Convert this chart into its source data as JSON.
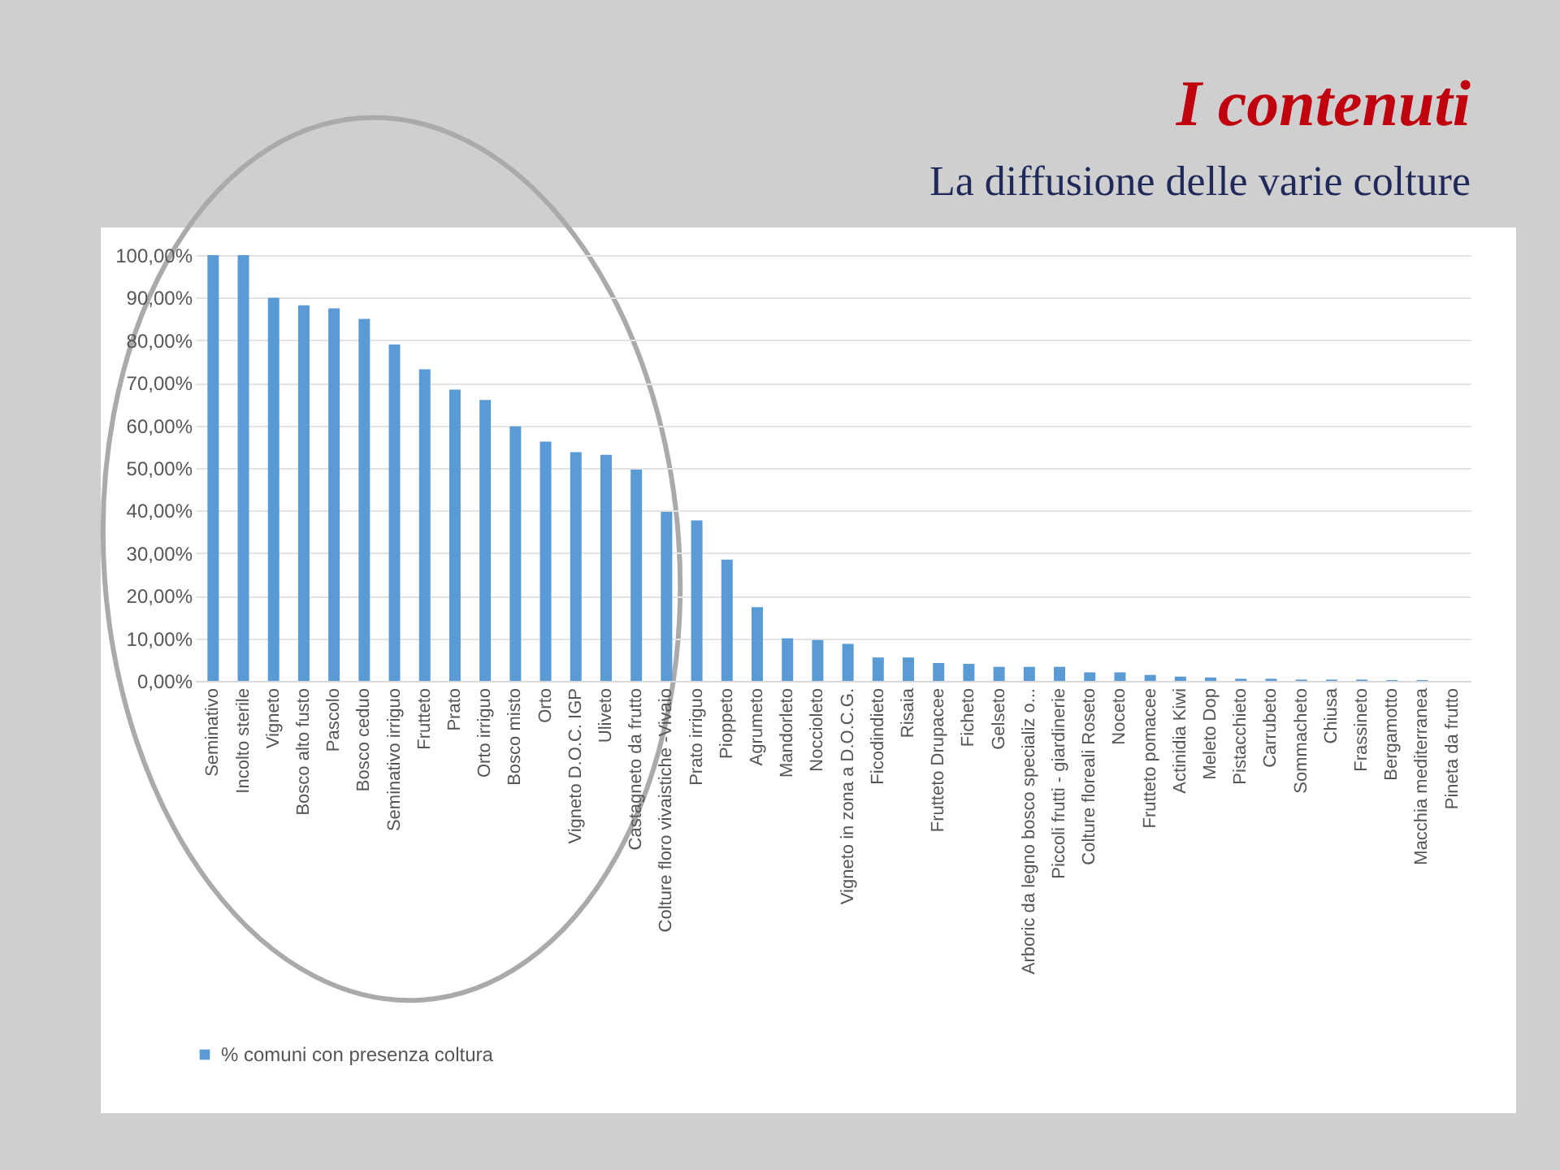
{
  "chart_data": {
    "type": "bar",
    "title": "I      contenuti",
    "subtitle": "La diffusione delle varie colture",
    "categories": [
      "Seminativo",
      "Incolto sterile",
      "Vigneto",
      "Bosco alto fusto",
      "Pascolo",
      "Bosco ceduo",
      "Seminativo irriguo",
      "Frutteto",
      "Prato",
      "Orto irriguo",
      "Bosco misto",
      "Orto",
      "Vigneto D.O.C. IGP",
      "Uliveto",
      "Castagneto da frutto",
      "Colture floro vivaistiche -Vivaio",
      "Prato irriguo",
      "Pioppeto",
      "Agrumeto",
      "Mandorleto",
      "Noccioleto",
      "Vigneto in zona a D.O.C.G.",
      "Ficodindieto",
      "Risaia",
      "Frutteto Drupacee",
      "Ficheto",
      "Gelseto",
      "Arboric da legno bosco  specializ o...",
      "Piccoli frutti - giardinerie",
      "Colture floreali Roseto",
      "Noceto",
      "Frutteto pomacee",
      "Actinidia Kiwi",
      "Meleto Dop",
      "Pistacchieto",
      "Carrubeto",
      "Sommacheto",
      "Chiusa",
      "Frassineto",
      "Bergamotto",
      "Macchia mediterranea",
      "Pineta da frutto"
    ],
    "series": [
      {
        "name": "% comuni con presenza coltura",
        "color": "#5b9bd5",
        "values": [
          100,
          100,
          90,
          88.2,
          87.5,
          85,
          79,
          73.2,
          68.4,
          66,
          59.8,
          56.2,
          53.7,
          53.1,
          49.6,
          39.7,
          37.7,
          28.5,
          17.3,
          10,
          9.6,
          8.7,
          5.5,
          5.5,
          4.2,
          4,
          3.3,
          3.3,
          3.3,
          2,
          2,
          1.4,
          1,
          0.8,
          0.5,
          0.5,
          0.3,
          0.3,
          0.3,
          0.2,
          0.2,
          0
        ]
      }
    ],
    "ylim": [
      0,
      100
    ],
    "yticks": [
      {
        "value": 0,
        "label": "0,00%"
      },
      {
        "value": 10,
        "label": "10,00%"
      },
      {
        "value": 20,
        "label": "20,00%"
      },
      {
        "value": 30,
        "label": "30,00%"
      },
      {
        "value": 40,
        "label": "40,00%"
      },
      {
        "value": 50,
        "label": "50,00%"
      },
      {
        "value": 60,
        "label": "60,00%"
      },
      {
        "value": 70,
        "label": "70,00%"
      },
      {
        "value": 80,
        "label": "80,00%"
      },
      {
        "value": 90,
        "label": "90,00%"
      },
      {
        "value": 100,
        "label": "100,00%"
      }
    ],
    "grid": "y",
    "legend": "bottom"
  }
}
